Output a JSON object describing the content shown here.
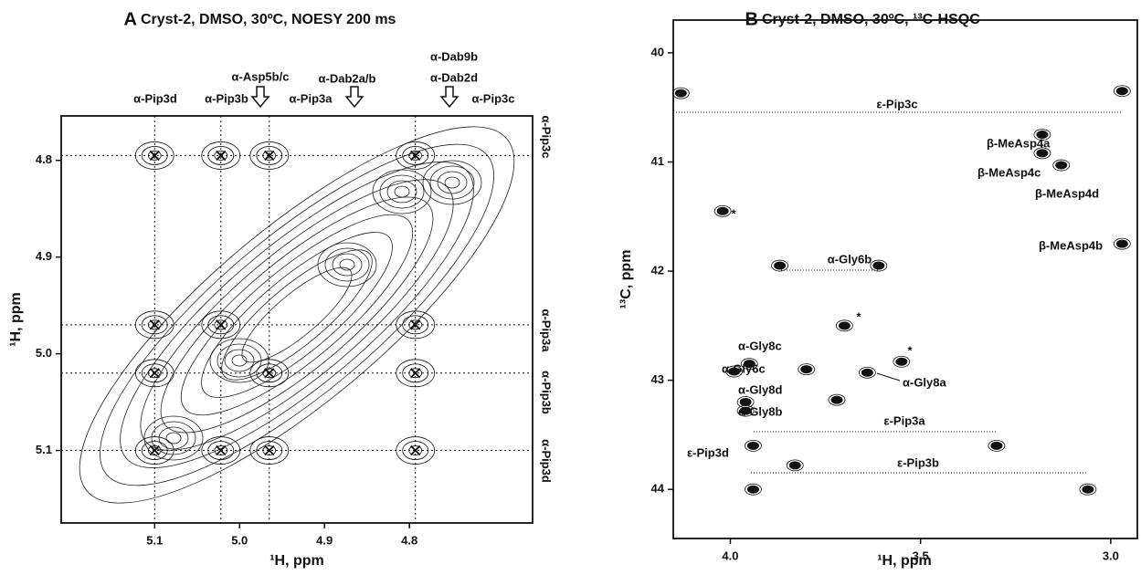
{
  "chart_data": [
    {
      "type": "contour",
      "panel": "A",
      "title": "Cryst-2, DMSO, 30ºC, NOESY 200 ms",
      "xlabel": "¹H, ppm",
      "ylabel": "¹H, ppm",
      "xlim": [
        5.21,
        4.655
      ],
      "ylim": [
        4.754,
        5.175
      ],
      "xticks": [
        5.1,
        {
          "value": 5,
          "label": "5.0"
        },
        4.9,
        4.8
      ],
      "yticks": [
        4.8,
        4.9,
        {
          "value": 5,
          "label": "5.0"
        },
        5.1
      ],
      "guides_x": [
        5.1,
        5.022,
        4.965,
        4.793
      ],
      "guides_y": [
        4.795,
        4.97,
        5.02,
        5.1
      ],
      "peaks": {
        "x": [
          5.1,
          5.022,
          4.965,
          4.793,
          5.1,
          5.022,
          4.793,
          5.1,
          4.965,
          4.793,
          5.1,
          5.022,
          4.965,
          4.793
        ],
        "y": [
          4.795,
          4.795,
          4.795,
          4.795,
          4.97,
          4.97,
          4.97,
          5.02,
          5.02,
          5.02,
          5.1,
          5.1,
          5.1,
          5.1
        ]
      },
      "labels": [
        "α-Pip3d",
        "α-Pip3b",
        "α-Asp5b/c",
        "α-Pip3a",
        "α-Dab2a/b",
        "α-Dab9b",
        "α-Dab2d",
        "α-Pip3c"
      ],
      "side_labels": [
        "α-Pip3c",
        "α-Pip3a",
        "α-Pip3b",
        "α-Pip3d"
      ]
    },
    {
      "type": "contour",
      "panel": "B",
      "title": "Cryst-2, DMSO,  30ºC, ¹³C-HSQC",
      "xlabel": "¹H, ppm",
      "ylabel": "¹³C, ppm",
      "xlim": [
        4.15,
        2.93
      ],
      "ylim": [
        39.7,
        44.45
      ],
      "xticks": [
        {
          "value": 4,
          "label": "4.0"
        },
        3.5,
        {
          "value": 3,
          "label": "3.0"
        }
      ],
      "yticks": [
        40,
        41,
        42,
        43,
        44
      ],
      "peaks": {
        "x": [
          4.13,
          2.97,
          3.18,
          3.18,
          3.13,
          4.02,
          2.97,
          3.87,
          3.61,
          3.7,
          3.55,
          3.95,
          3.99,
          3.64,
          3.96,
          3.96,
          3.94,
          3.3,
          3.83,
          3.94,
          3.06,
          3.8,
          3.72
        ],
        "y": [
          40.37,
          40.35,
          40.75,
          40.92,
          41.03,
          41.45,
          41.75,
          41.95,
          41.95,
          42.5,
          42.83,
          42.85,
          42.92,
          42.93,
          43.2,
          43.28,
          43.6,
          43.6,
          43.78,
          44.0,
          44.0,
          42.9,
          43.18
        ]
      },
      "labels": [
        "ε-Pip3c",
        "β-MeAsp4a",
        "β-MeAsp4c",
        "β-MeAsp4d",
        "β-MeAsp4b",
        "*",
        "α-Gly6b",
        "*",
        "*",
        "α-Gly8c",
        "α-Gly6c",
        "α-Gly8a",
        "α-Gly8d",
        "α-Gly8b",
        "ε-Pip3a",
        "ε-Pip3d",
        "ε-Pip3b"
      ]
    }
  ]
}
